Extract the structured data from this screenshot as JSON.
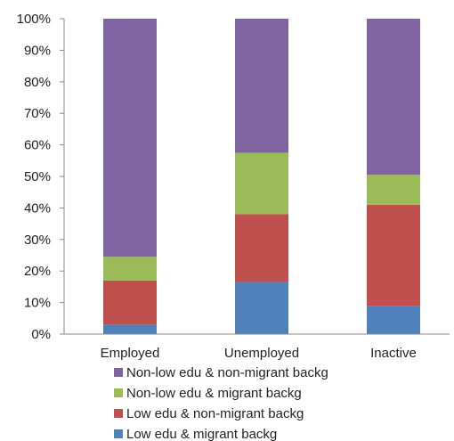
{
  "chart_data": {
    "type": "bar",
    "stacked": true,
    "percent": true,
    "categories": [
      "Employed",
      "Unemployed",
      "Inactive"
    ],
    "series": [
      {
        "name": "Low edu & migrant backg",
        "color": "#4f81bd",
        "values": [
          3,
          16.5,
          9
        ]
      },
      {
        "name": "Low edu & non-migrant backg",
        "color": "#c0504d",
        "values": [
          14,
          21.5,
          32
        ]
      },
      {
        "name": "Non-low edu & migrant backg",
        "color": "#9bbb59",
        "values": [
          7.5,
          19.5,
          9.5
        ]
      },
      {
        "name": "Non-low edu & non-migrant backg",
        "color": "#8064a2",
        "values": [
          75.5,
          42.5,
          49.5
        ]
      }
    ],
    "y_ticks": [
      "0%",
      "10%",
      "20%",
      "30%",
      "40%",
      "50%",
      "60%",
      "70%",
      "80%",
      "90%",
      "100%"
    ],
    "ylim": [
      0,
      100
    ],
    "grid": false,
    "legend": {
      "position": "bottom",
      "order": [
        "Non-low edu & non-migrant backg",
        "Non-low edu & migrant backg",
        "Low edu & non-migrant backg",
        "Low edu & migrant backg"
      ]
    }
  }
}
